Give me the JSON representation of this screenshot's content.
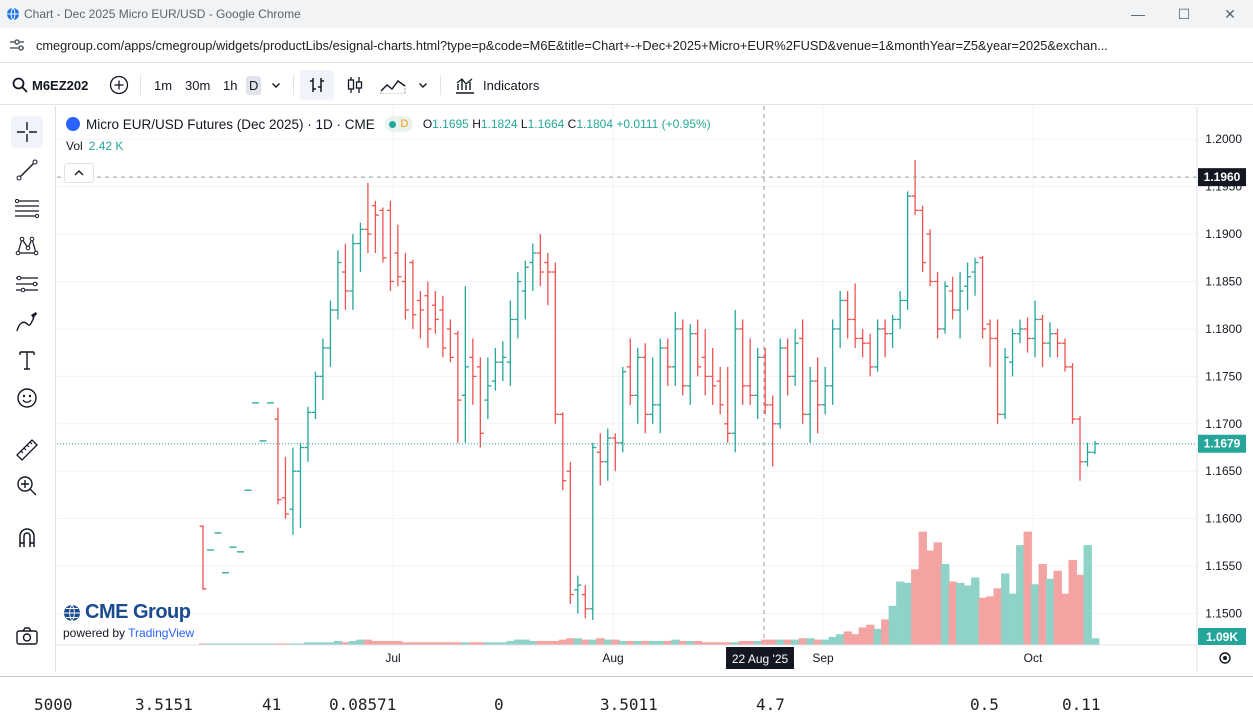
{
  "window": {
    "title": "Chart - Dec 2025 Micro EUR/USD - Google Chrome",
    "minimize": "—",
    "maximize": "☐",
    "close": "✕"
  },
  "browser": {
    "url": "cmegroup.com/apps/cmegroup/widgets/productLibs/esignal-charts.html?type=p&code=M6E&title=Chart+-+Dec+2025+Micro+EUR%2FUSD&venue=1&monthYear=Z5&year=2025&exchan..."
  },
  "toolbar": {
    "symbol": "M6EZ202",
    "intervals": [
      "1m",
      "30m",
      "1h",
      "D"
    ],
    "indicators_label": "Indicators"
  },
  "legend": {
    "title": "Micro EUR/USD Futures (Dec 2025) · 1D · CME",
    "status_letter": "D",
    "o_label": "O",
    "o_value": "1.1695",
    "h_label": "H",
    "h_value": "1.1824",
    "l_label": "L",
    "l_value": "1.1664",
    "c_label": "C",
    "c_value": "1.1804",
    "change": "+0.0111 (+0.95%)",
    "vol_label": "Vol",
    "vol_value": "2.42 K"
  },
  "branding": {
    "name": "CME Group",
    "powered_prefix": "powered by",
    "powered_link": "TradingView"
  },
  "chart_data": {
    "type": "ohlc",
    "y_ticks": [
      "1.2000",
      "1.1950",
      "1.1900",
      "1.1850",
      "1.1800",
      "1.1750",
      "1.1700",
      "1.1650",
      "1.1600",
      "1.1550",
      "1.1500"
    ],
    "ylim": [
      1.147,
      1.2035
    ],
    "x_labels": [
      "Jul",
      "Aug",
      "Sep",
      "Oct"
    ],
    "crosshair_date": "22 Aug '25",
    "price_line_label": "1.1960",
    "price_line_value": 1.196,
    "last_price_label": "1.1679",
    "last_price_value": 1.1679,
    "volume_label": "1.09K",
    "colors": {
      "up": "#26a69a",
      "down": "#ef5350",
      "up_vol": "#8fd3c8",
      "down_vol": "#f4a3a3"
    },
    "bars": [
      {
        "o": 1.1592,
        "h": 1.1593,
        "l": 1.1525,
        "c": 1.1526
      },
      {
        "o": 1.1567,
        "h": 1.1567,
        "l": 1.1567,
        "c": 1.1567
      },
      {
        "o": 1.1585,
        "h": 1.1585,
        "l": 1.1585,
        "c": 1.1585
      },
      {
        "o": 1.1543,
        "h": 1.1543,
        "l": 1.1543,
        "c": 1.1543
      },
      {
        "o": 1.157,
        "h": 1.157,
        "l": 1.157,
        "c": 1.157
      },
      {
        "o": 1.1565,
        "h": 1.1565,
        "l": 1.1565,
        "c": 1.1565
      },
      {
        "o": 1.163,
        "h": 1.163,
        "l": 1.163,
        "c": 1.163
      },
      {
        "o": 1.1722,
        "h": 1.1722,
        "l": 1.1722,
        "c": 1.1722
      },
      {
        "o": 1.1682,
        "h": 1.1682,
        "l": 1.1682,
        "c": 1.1682
      },
      {
        "o": 1.1722,
        "h": 1.1722,
        "l": 1.1722,
        "c": 1.1722
      },
      {
        "o": 1.1705,
        "h": 1.1717,
        "l": 1.1615,
        "c": 1.162
      },
      {
        "o": 1.1622,
        "h": 1.1665,
        "l": 1.16,
        "c": 1.1605
      },
      {
        "o": 1.161,
        "h": 1.1675,
        "l": 1.1583,
        "c": 1.165
      },
      {
        "o": 1.165,
        "h": 1.168,
        "l": 1.159,
        "c": 1.1675
      },
      {
        "o": 1.1675,
        "h": 1.1718,
        "l": 1.166,
        "c": 1.1712
      },
      {
        "o": 1.1712,
        "h": 1.1755,
        "l": 1.1705,
        "c": 1.175
      },
      {
        "o": 1.175,
        "h": 1.179,
        "l": 1.1725,
        "c": 1.178
      },
      {
        "o": 1.178,
        "h": 1.183,
        "l": 1.176,
        "c": 1.182
      },
      {
        "o": 1.182,
        "h": 1.1883,
        "l": 1.181,
        "c": 1.187
      },
      {
        "o": 1.186,
        "h": 1.189,
        "l": 1.182,
        "c": 1.184
      },
      {
        "o": 1.184,
        "h": 1.19,
        "l": 1.182,
        "c": 1.189
      },
      {
        "o": 1.189,
        "h": 1.1912,
        "l": 1.186,
        "c": 1.1905
      },
      {
        "o": 1.1905,
        "h": 1.1954,
        "l": 1.188,
        "c": 1.19
      },
      {
        "o": 1.193,
        "h": 1.1935,
        "l": 1.188,
        "c": 1.192
      },
      {
        "o": 1.1925,
        "h": 1.1928,
        "l": 1.187,
        "c": 1.1875
      },
      {
        "o": 1.1925,
        "h": 1.1935,
        "l": 1.184,
        "c": 1.185
      },
      {
        "o": 1.188,
        "h": 1.191,
        "l": 1.1845,
        "c": 1.1855
      },
      {
        "o": 1.185,
        "h": 1.188,
        "l": 1.181,
        "c": 1.182
      },
      {
        "o": 1.187,
        "h": 1.1873,
        "l": 1.18,
        "c": 1.1815
      },
      {
        "o": 1.183,
        "h": 1.184,
        "l": 1.179,
        "c": 1.182
      },
      {
        "o": 1.1835,
        "h": 1.185,
        "l": 1.178,
        "c": 1.18
      },
      {
        "o": 1.1825,
        "h": 1.184,
        "l": 1.1795,
        "c": 1.181
      },
      {
        "o": 1.182,
        "h": 1.1835,
        "l": 1.177,
        "c": 1.178
      },
      {
        "o": 1.18,
        "h": 1.181,
        "l": 1.1765,
        "c": 1.177
      },
      {
        "o": 1.1795,
        "h": 1.1798,
        "l": 1.168,
        "c": 1.1725
      },
      {
        "o": 1.173,
        "h": 1.1845,
        "l": 1.168,
        "c": 1.176
      },
      {
        "o": 1.177,
        "h": 1.179,
        "l": 1.172,
        "c": 1.175
      },
      {
        "o": 1.176,
        "h": 1.177,
        "l": 1.1675,
        "c": 1.169
      },
      {
        "o": 1.1725,
        "h": 1.177,
        "l": 1.1705,
        "c": 1.174
      },
      {
        "o": 1.1745,
        "h": 1.178,
        "l": 1.1735,
        "c": 1.1765
      },
      {
        "o": 1.1765,
        "h": 1.1787,
        "l": 1.1745,
        "c": 1.177
      },
      {
        "o": 1.1765,
        "h": 1.183,
        "l": 1.174,
        "c": 1.181
      },
      {
        "o": 1.181,
        "h": 1.186,
        "l": 1.179,
        "c": 1.185
      },
      {
        "o": 1.184,
        "h": 1.1872,
        "l": 1.181,
        "c": 1.1865
      },
      {
        "o": 1.187,
        "h": 1.189,
        "l": 1.184,
        "c": 1.188
      },
      {
        "o": 1.188,
        "h": 1.19,
        "l": 1.1845,
        "c": 1.186
      },
      {
        "o": 1.187,
        "h": 1.188,
        "l": 1.1825,
        "c": 1.186
      },
      {
        "o": 1.186,
        "h": 1.187,
        "l": 1.17,
        "c": 1.171
      },
      {
        "o": 1.171,
        "h": 1.1712,
        "l": 1.163,
        "c": 1.164
      },
      {
        "o": 1.165,
        "h": 1.166,
        "l": 1.151,
        "c": 1.152
      },
      {
        "o": 1.1525,
        "h": 1.154,
        "l": 1.15,
        "c": 1.153
      },
      {
        "o": 1.152,
        "h": 1.153,
        "l": 1.1495,
        "c": 1.1505
      },
      {
        "o": 1.1505,
        "h": 1.168,
        "l": 1.1493,
        "c": 1.1675
      },
      {
        "o": 1.167,
        "h": 1.169,
        "l": 1.1635,
        "c": 1.166
      },
      {
        "o": 1.166,
        "h": 1.1695,
        "l": 1.164,
        "c": 1.1685
      },
      {
        "o": 1.1685,
        "h": 1.169,
        "l": 1.165,
        "c": 1.168
      },
      {
        "o": 1.168,
        "h": 1.176,
        "l": 1.167,
        "c": 1.1755
      },
      {
        "o": 1.176,
        "h": 1.179,
        "l": 1.172,
        "c": 1.173
      },
      {
        "o": 1.173,
        "h": 1.178,
        "l": 1.17,
        "c": 1.177
      },
      {
        "o": 1.177,
        "h": 1.1785,
        "l": 1.169,
        "c": 1.171
      },
      {
        "o": 1.171,
        "h": 1.177,
        "l": 1.17,
        "c": 1.172
      },
      {
        "o": 1.172,
        "h": 1.179,
        "l": 1.169,
        "c": 1.178
      },
      {
        "o": 1.178,
        "h": 1.179,
        "l": 1.174,
        "c": 1.176
      },
      {
        "o": 1.176,
        "h": 1.1818,
        "l": 1.174,
        "c": 1.18
      },
      {
        "o": 1.18,
        "h": 1.181,
        "l": 1.173,
        "c": 1.174
      },
      {
        "o": 1.174,
        "h": 1.1805,
        "l": 1.172,
        "c": 1.1795
      },
      {
        "o": 1.1795,
        "h": 1.181,
        "l": 1.175,
        "c": 1.176
      },
      {
        "o": 1.177,
        "h": 1.18,
        "l": 1.173,
        "c": 1.175
      },
      {
        "o": 1.175,
        "h": 1.178,
        "l": 1.172,
        "c": 1.174
      },
      {
        "o": 1.1745,
        "h": 1.176,
        "l": 1.171,
        "c": 1.172
      },
      {
        "o": 1.17,
        "h": 1.176,
        "l": 1.168,
        "c": 1.169
      },
      {
        "o": 1.169,
        "h": 1.182,
        "l": 1.167,
        "c": 1.18
      },
      {
        "o": 1.18,
        "h": 1.181,
        "l": 1.172,
        "c": 1.174
      },
      {
        "o": 1.174,
        "h": 1.179,
        "l": 1.172,
        "c": 1.173
      },
      {
        "o": 1.173,
        "h": 1.178,
        "l": 1.1705,
        "c": 1.177
      },
      {
        "o": 1.177,
        "h": 1.178,
        "l": 1.171,
        "c": 1.172
      },
      {
        "o": 1.172,
        "h": 1.173,
        "l": 1.1655,
        "c": 1.17
      },
      {
        "o": 1.17,
        "h": 1.179,
        "l": 1.1695,
        "c": 1.178
      },
      {
        "o": 1.178,
        "h": 1.179,
        "l": 1.173,
        "c": 1.175
      },
      {
        "o": 1.175,
        "h": 1.18,
        "l": 1.174,
        "c": 1.1785
      },
      {
        "o": 1.179,
        "h": 1.181,
        "l": 1.17,
        "c": 1.171
      },
      {
        "o": 1.171,
        "h": 1.176,
        "l": 1.168,
        "c": 1.1745
      },
      {
        "o": 1.1745,
        "h": 1.177,
        "l": 1.169,
        "c": 1.172
      },
      {
        "o": 1.172,
        "h": 1.176,
        "l": 1.171,
        "c": 1.174
      },
      {
        "o": 1.174,
        "h": 1.181,
        "l": 1.172,
        "c": 1.18
      },
      {
        "o": 1.18,
        "h": 1.184,
        "l": 1.178,
        "c": 1.183
      },
      {
        "o": 1.183,
        "h": 1.184,
        "l": 1.179,
        "c": 1.181
      },
      {
        "o": 1.181,
        "h": 1.1848,
        "l": 1.178,
        "c": 1.179
      },
      {
        "o": 1.179,
        "h": 1.18,
        "l": 1.177,
        "c": 1.1785
      },
      {
        "o": 1.1785,
        "h": 1.1795,
        "l": 1.175,
        "c": 1.176
      },
      {
        "o": 1.176,
        "h": 1.181,
        "l": 1.1755,
        "c": 1.18
      },
      {
        "o": 1.18,
        "h": 1.181,
        "l": 1.177,
        "c": 1.1795
      },
      {
        "o": 1.1795,
        "h": 1.1815,
        "l": 1.178,
        "c": 1.181
      },
      {
        "o": 1.181,
        "h": 1.184,
        "l": 1.18,
        "c": 1.183
      },
      {
        "o": 1.183,
        "h": 1.1945,
        "l": 1.182,
        "c": 1.194
      },
      {
        "o": 1.194,
        "h": 1.1978,
        "l": 1.192,
        "c": 1.1925
      },
      {
        "o": 1.1925,
        "h": 1.193,
        "l": 1.186,
        "c": 1.187
      },
      {
        "o": 1.19,
        "h": 1.1905,
        "l": 1.1845,
        "c": 1.185
      },
      {
        "o": 1.185,
        "h": 1.186,
        "l": 1.179,
        "c": 1.18
      },
      {
        "o": 1.18,
        "h": 1.185,
        "l": 1.1795,
        "c": 1.1845
      },
      {
        "o": 1.184,
        "h": 1.1855,
        "l": 1.181,
        "c": 1.182
      },
      {
        "o": 1.182,
        "h": 1.186,
        "l": 1.179,
        "c": 1.184
      },
      {
        "o": 1.1845,
        "h": 1.187,
        "l": 1.182,
        "c": 1.1855
      },
      {
        "o": 1.186,
        "h": 1.1875,
        "l": 1.1835,
        "c": 1.187
      },
      {
        "o": 1.1875,
        "h": 1.1877,
        "l": 1.179,
        "c": 1.18
      },
      {
        "o": 1.1805,
        "h": 1.181,
        "l": 1.176,
        "c": 1.179
      },
      {
        "o": 1.179,
        "h": 1.181,
        "l": 1.17,
        "c": 1.171
      },
      {
        "o": 1.171,
        "h": 1.178,
        "l": 1.1705,
        "c": 1.177
      },
      {
        "o": 1.1765,
        "h": 1.18,
        "l": 1.175,
        "c": 1.1795
      },
      {
        "o": 1.1795,
        "h": 1.181,
        "l": 1.1785,
        "c": 1.18
      },
      {
        "o": 1.18,
        "h": 1.1812,
        "l": 1.1775,
        "c": 1.179
      },
      {
        "o": 1.179,
        "h": 1.183,
        "l": 1.177,
        "c": 1.181
      },
      {
        "o": 1.181,
        "h": 1.1815,
        "l": 1.176,
        "c": 1.1785
      },
      {
        "o": 1.1785,
        "h": 1.1807,
        "l": 1.177,
        "c": 1.1795
      },
      {
        "o": 1.1795,
        "h": 1.18,
        "l": 1.177,
        "c": 1.1785
      },
      {
        "o": 1.1785,
        "h": 1.179,
        "l": 1.1755,
        "c": 1.176
      },
      {
        "o": 1.176,
        "h": 1.1764,
        "l": 1.17,
        "c": 1.1705
      },
      {
        "o": 1.1705,
        "h": 1.1708,
        "l": 1.164,
        "c": 1.166
      },
      {
        "o": 1.166,
        "h": 1.168,
        "l": 1.1655,
        "c": 1.167
      },
      {
        "o": 1.167,
        "h": 1.1682,
        "l": 1.1668,
        "c": 1.1679
      }
    ],
    "volume": [
      0.01,
      0.01,
      0.01,
      0.01,
      0.01,
      0.01,
      0.01,
      0.01,
      0.01,
      0.01,
      0.01,
      0.01,
      0.01,
      0.01,
      0.02,
      0.02,
      0.02,
      0.02,
      0.03,
      0.02,
      0.03,
      0.04,
      0.04,
      0.03,
      0.03,
      0.03,
      0.03,
      0.02,
      0.02,
      0.02,
      0.02,
      0.02,
      0.02,
      0.02,
      0.02,
      0.02,
      0.02,
      0.02,
      0.02,
      0.02,
      0.02,
      0.03,
      0.04,
      0.04,
      0.03,
      0.03,
      0.03,
      0.03,
      0.04,
      0.05,
      0.05,
      0.04,
      0.04,
      0.05,
      0.04,
      0.04,
      0.03,
      0.03,
      0.03,
      0.03,
      0.03,
      0.03,
      0.03,
      0.04,
      0.03,
      0.03,
      0.03,
      0.02,
      0.02,
      0.02,
      0.02,
      0.02,
      0.03,
      0.03,
      0.03,
      0.04,
      0.04,
      0.04,
      0.04,
      0.04,
      0.05,
      0.05,
      0.04,
      0.04,
      0.06,
      0.08,
      0.1,
      0.08,
      0.13,
      0.15,
      0.12,
      0.19,
      0.29,
      0.47,
      0.46,
      0.56,
      0.84,
      0.7,
      0.76,
      0.6,
      0.47,
      0.46,
      0.44,
      0.5,
      0.35,
      0.36,
      0.42,
      0.53,
      0.38,
      0.74,
      0.84,
      0.45,
      0.6,
      0.49,
      0.55,
      0.38,
      0.63,
      0.52,
      0.74,
      0.05
    ]
  },
  "footer_fragments": [
    "5000",
    "3.5151",
    "41",
    "0.08571",
    "0",
    "3.5011",
    "4.7",
    "0.5",
    "0.11"
  ]
}
